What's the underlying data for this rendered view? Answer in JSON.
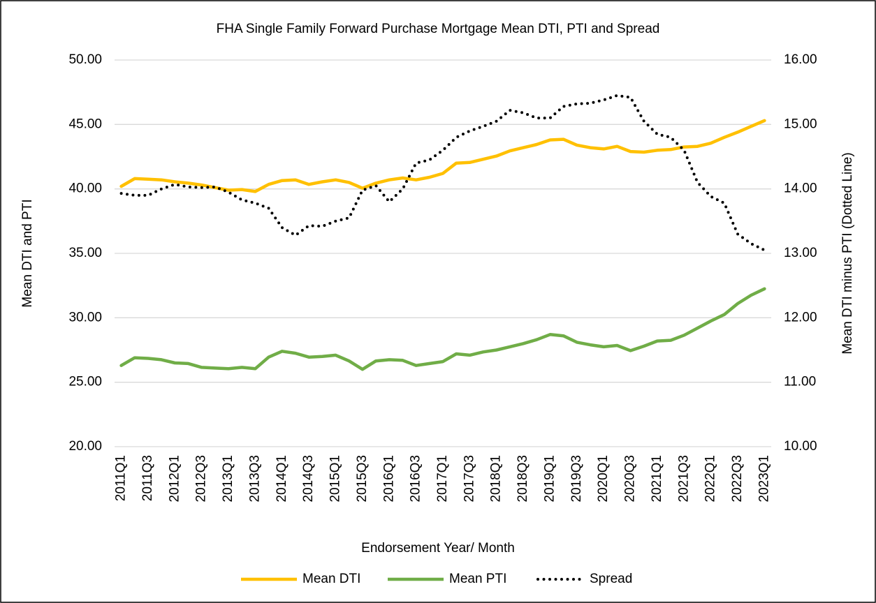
{
  "chart_data": {
    "type": "line",
    "title": "FHA Single Family Forward Purchase Mortgage Mean DTI, PTI and Spread",
    "x_label": "Endorsement Year/ Month",
    "y_label": "Mean DTI and PTI",
    "y2_label": "Mean DTI minus PTI (Dotted Line)",
    "categories": [
      "2011Q1",
      null,
      "2011Q3",
      null,
      "2012Q1",
      null,
      "2012Q3",
      null,
      "2013Q1",
      null,
      "2013Q3",
      null,
      "2014Q1",
      null,
      "2014Q3",
      null,
      "2015Q1",
      null,
      "2015Q3",
      null,
      "2016Q1",
      null,
      "2016Q3",
      null,
      "2017Q1",
      null,
      "2017Q3",
      null,
      "2018Q1",
      null,
      "2018Q3",
      null,
      "2019Q1",
      null,
      "2019Q3",
      null,
      "2020Q1",
      null,
      "2020Q3",
      null,
      "2021Q1",
      null,
      "2021Q3",
      null,
      "2022Q1",
      null,
      "2022Q3",
      null,
      "2023Q1"
    ],
    "series": [
      {
        "name": "Mean DTI",
        "color": "#ffc000",
        "line_style": "solid",
        "values": [
          40.2,
          40.8,
          40.75,
          40.7,
          40.55,
          40.45,
          40.3,
          40.1,
          39.9,
          39.95,
          39.8,
          40.35,
          40.65,
          40.7,
          40.35,
          40.55,
          40.7,
          40.5,
          40.05,
          40.45,
          40.7,
          40.85,
          40.7,
          40.9,
          41.2,
          42.0,
          42.05,
          42.3,
          42.55,
          42.95,
          43.2,
          43.45,
          43.8,
          43.85,
          43.4,
          43.2,
          43.1,
          43.3,
          42.9,
          42.85,
          43.0,
          43.05,
          43.25,
          43.3,
          43.55,
          44.0,
          44.4,
          44.85,
          45.3
        ]
      },
      {
        "name": "Mean PTI",
        "color": "#70ad47",
        "line_style": "solid",
        "values": [
          26.3,
          26.9,
          26.85,
          26.75,
          26.5,
          26.45,
          26.15,
          26.1,
          26.05,
          26.15,
          26.05,
          26.95,
          27.4,
          27.25,
          26.95,
          27.0,
          27.1,
          26.65,
          26.0,
          26.65,
          26.75,
          26.7,
          26.3,
          26.45,
          26.6,
          27.2,
          27.1,
          27.35,
          27.5,
          27.75,
          28.0,
          28.3,
          28.7,
          28.6,
          28.1,
          27.9,
          27.75,
          27.85,
          27.45,
          27.8,
          28.2,
          28.25,
          28.65,
          29.2,
          29.75,
          30.25,
          31.1,
          31.75,
          32.25
        ]
      },
      {
        "name": "Spread",
        "color": "#000000",
        "line_style": "dotted",
        "axis": "y2",
        "values": [
          13.93,
          13.9,
          13.9,
          14.0,
          14.07,
          14.03,
          14.02,
          14.03,
          13.95,
          13.83,
          13.78,
          13.7,
          13.4,
          13.28,
          13.43,
          13.42,
          13.5,
          13.55,
          13.98,
          14.05,
          13.8,
          14.0,
          14.4,
          14.45,
          14.6,
          14.8,
          14.9,
          14.97,
          15.05,
          15.22,
          15.18,
          15.1,
          15.1,
          15.28,
          15.32,
          15.33,
          15.38,
          15.45,
          15.42,
          15.05,
          14.85,
          14.8,
          14.6,
          14.1,
          13.88,
          13.78,
          13.3,
          13.15,
          13.05
        ]
      }
    ],
    "ylim": [
      20,
      50
    ],
    "yticks": [
      {
        "value": 20,
        "label": "20.00"
      },
      {
        "value": 25,
        "label": "25.00"
      },
      {
        "value": 30,
        "label": "30.00"
      },
      {
        "value": 35,
        "label": "35.00"
      },
      {
        "value": 40,
        "label": "40.00"
      },
      {
        "value": 45,
        "label": "45.00"
      },
      {
        "value": 50,
        "label": "50.00"
      }
    ],
    "y2lim": [
      10,
      16
    ],
    "y2ticks": [
      {
        "value": 10,
        "label": "10.00"
      },
      {
        "value": 11,
        "label": "11.00"
      },
      {
        "value": 12,
        "label": "12.00"
      },
      {
        "value": 13,
        "label": "13.00"
      },
      {
        "value": 14,
        "label": "14.00"
      },
      {
        "value": 15,
        "label": "15.00"
      },
      {
        "value": 16,
        "label": "16.00"
      }
    ],
    "grid": true,
    "legend": "bottom"
  }
}
